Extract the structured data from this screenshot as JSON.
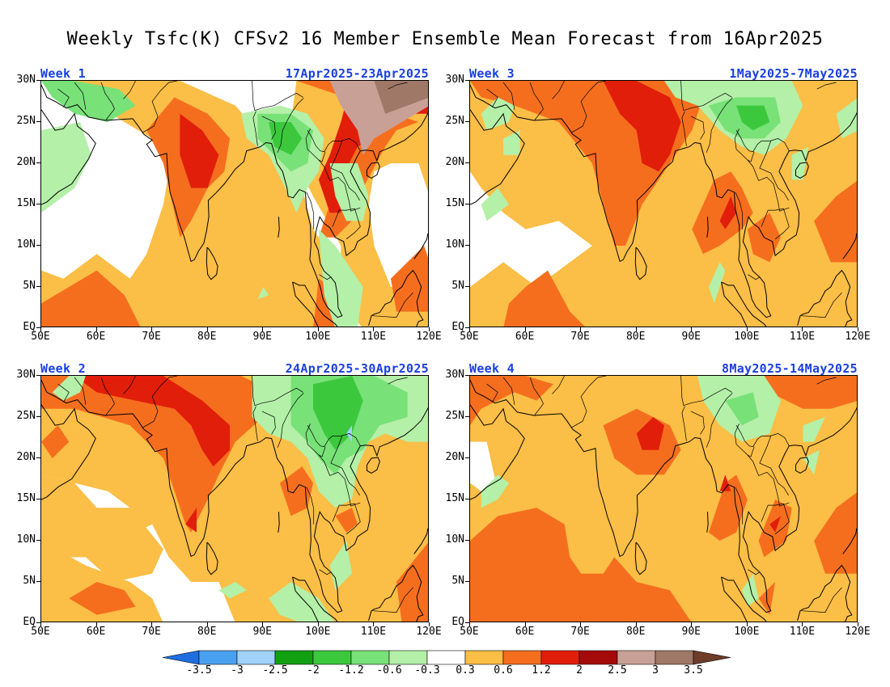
{
  "title": "Weekly Tsfc(K) CFSv2 16 Member Ensemble Mean Forecast from 16Apr2025",
  "lat_labels": [
    "30N",
    "25N",
    "20N",
    "15N",
    "10N",
    "5N",
    "EQ"
  ],
  "lon_labels": [
    "50E",
    "60E",
    "70E",
    "80E",
    "90E",
    "100E",
    "110E",
    "120E"
  ],
  "panels": [
    {
      "id": "w1",
      "week": "Week 1",
      "dates": "17Apr2025-23Apr2025"
    },
    {
      "id": "w3",
      "week": "Week 3",
      "dates": "1May2025-7May2025"
    },
    {
      "id": "w2",
      "week": "Week 2",
      "dates": "24Apr2025-30Apr2025"
    },
    {
      "id": "w4",
      "week": "Week 4",
      "dates": "8May2025-14May2025"
    }
  ],
  "colorbar": {
    "labels": [
      "-3.5",
      "-3",
      "-2.5",
      "-2",
      "-1.2",
      "-0.6",
      "-0.3",
      "0.3",
      "0.6",
      "1.2",
      "2",
      "2.5",
      "3",
      "3.5"
    ],
    "colors": [
      "#1e6ee0",
      "#4aa0f0",
      "#a0d2fa",
      "#12a012",
      "#3cc83c",
      "#78e178",
      "#b4f0a8",
      "#ffffff",
      "#fbbe46",
      "#f56e1e",
      "#e11e0a",
      "#a50a0a",
      "#c8a096",
      "#a07868",
      "#6e3c28"
    ]
  },
  "colors": {
    "warm_light": "#fbbe46",
    "warm_mid": "#f56e1e",
    "warm_strong": "#e11e0a",
    "warm_dark": "#a50a0a",
    "brown_light": "#c8a096",
    "brown": "#a07868",
    "green_light": "#b4f0a8",
    "green": "#78e178",
    "green_mid": "#3cc83c",
    "blue_light": "#a0d2fa",
    "label_blue": "#1a3fe0"
  }
}
